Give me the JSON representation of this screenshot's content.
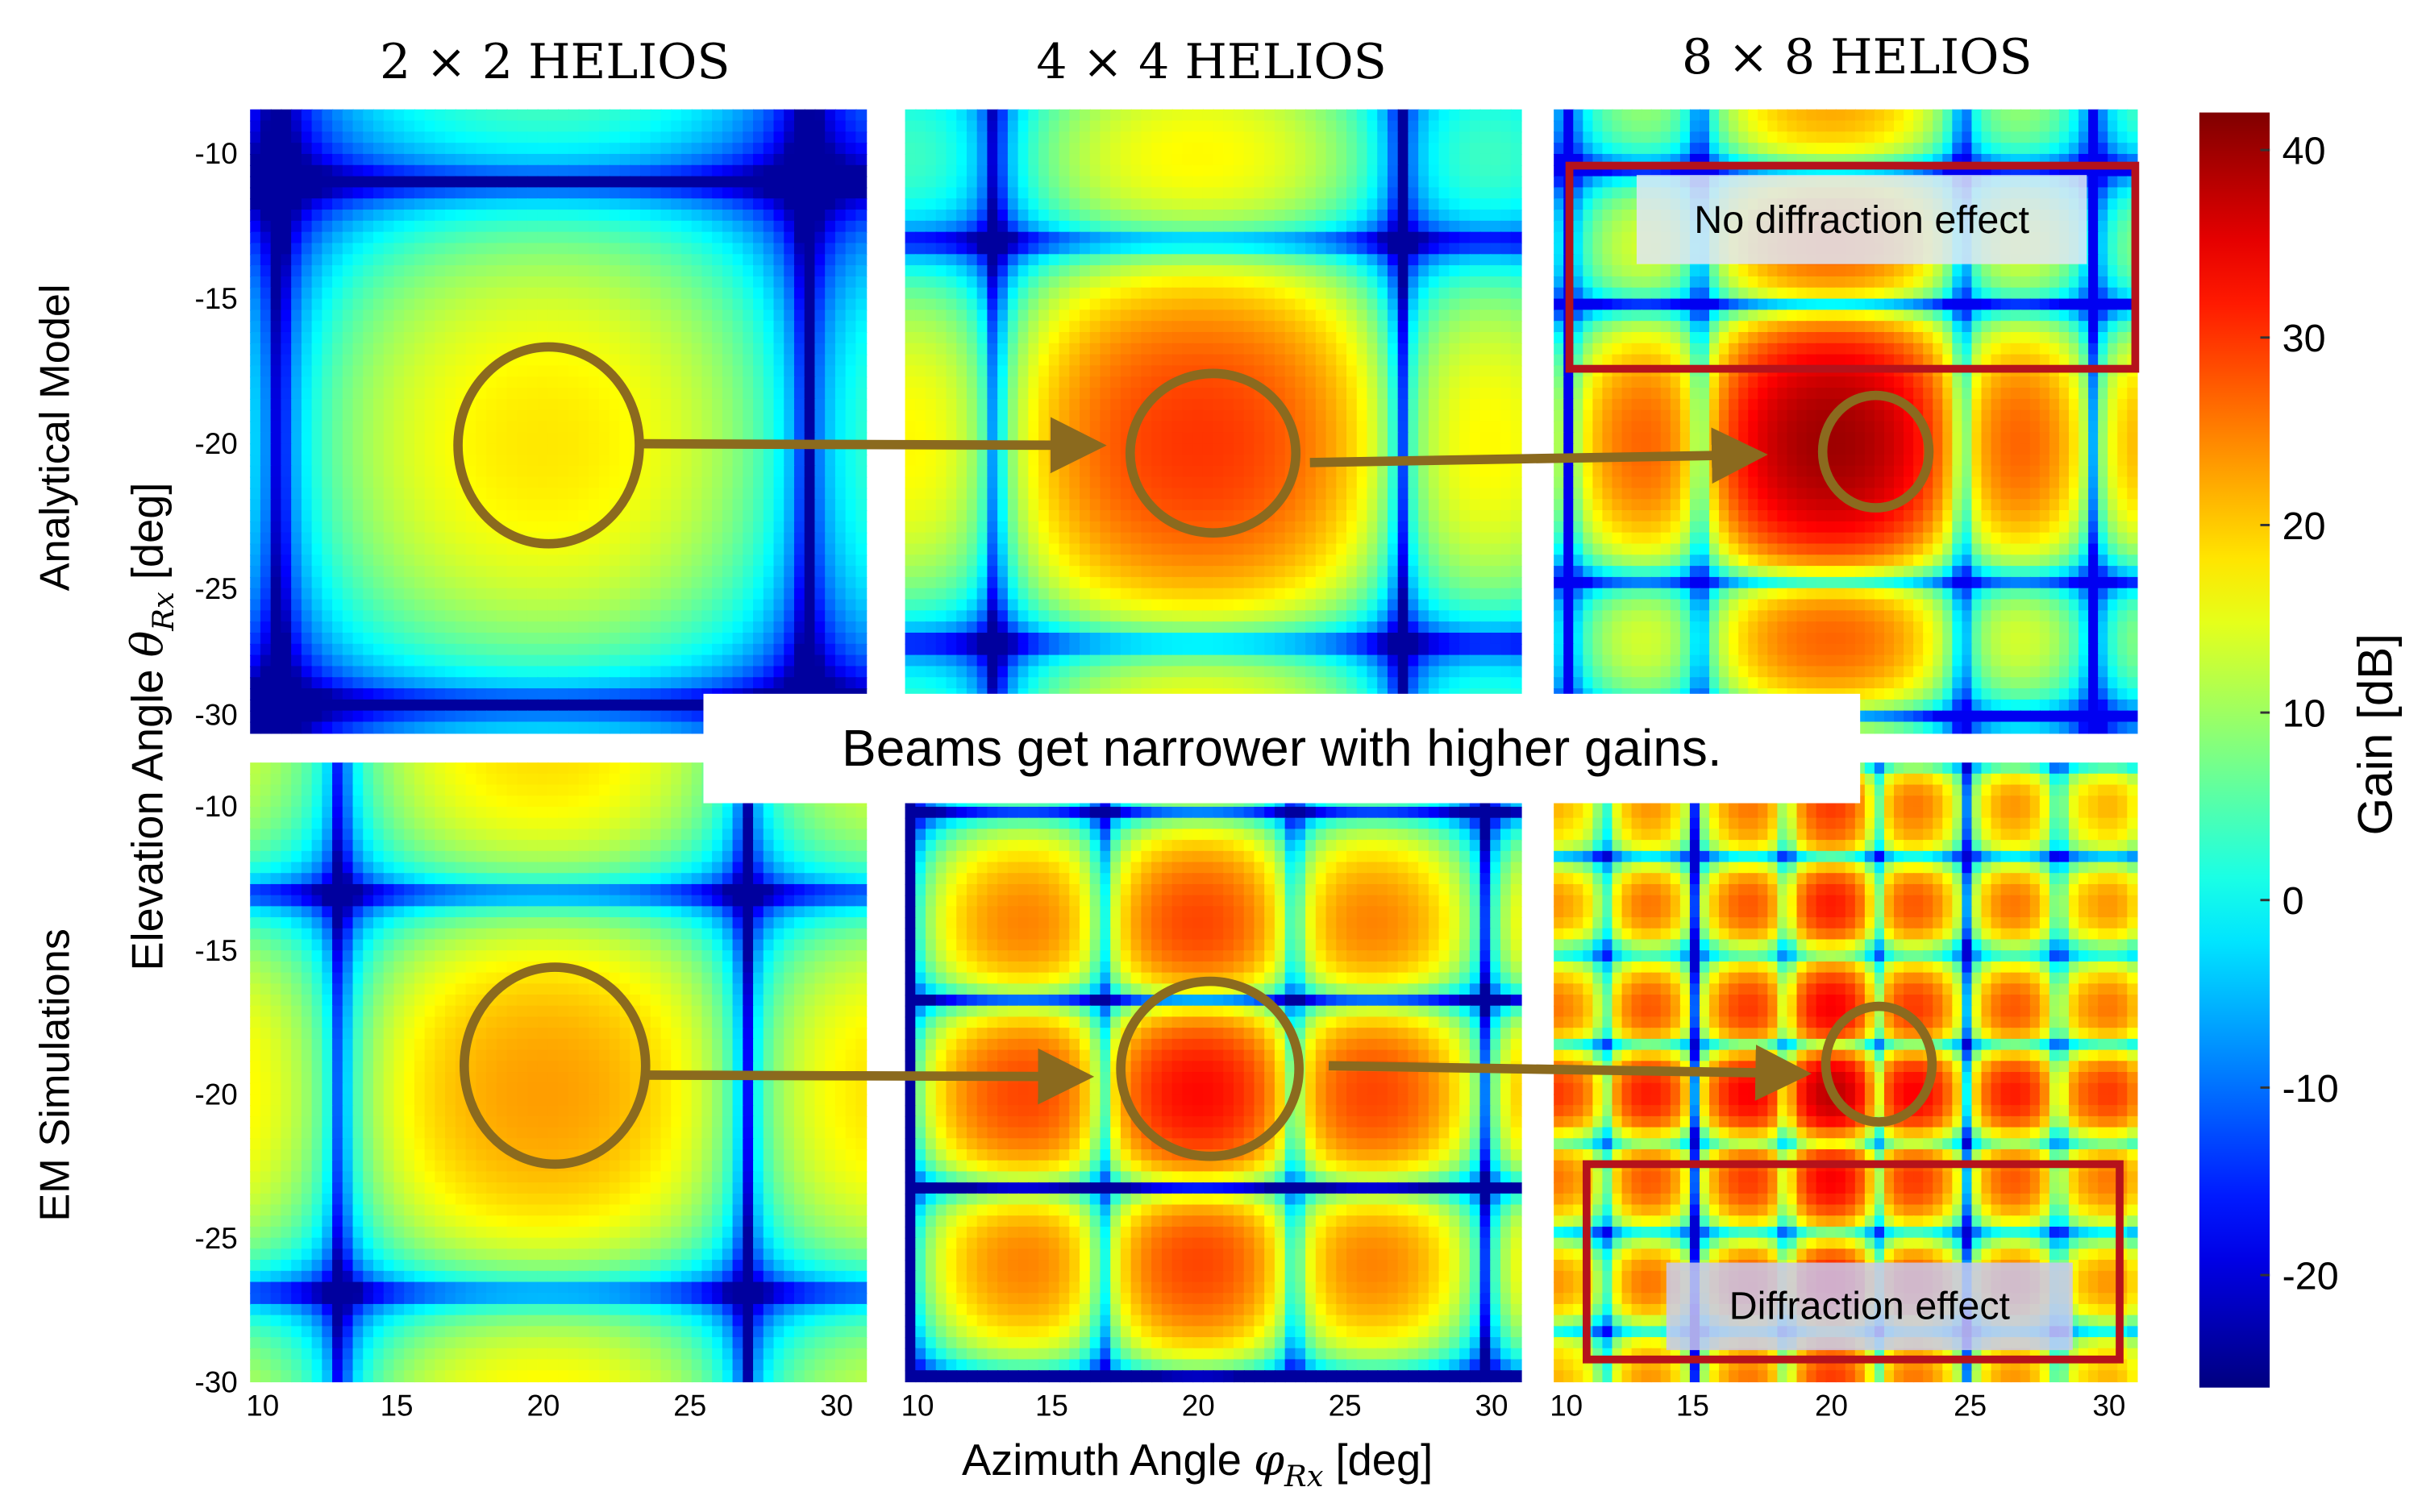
{
  "chart_data": {
    "type": "heatmap",
    "columns": [
      "2 × 2 HELIOS",
      "4 × 4 HELIOS",
      "8 × 8 HELIOS"
    ],
    "rows": [
      "Analytical Model",
      "EM Simulations"
    ],
    "xlabel_text": "Azimuth Angle ",
    "xlabel_symbol": "φ",
    "xlabel_sub": "Rx",
    "xlabel_unit": " [deg]",
    "ylabel_text": "Elevation Angle ",
    "ylabel_symbol": "θ",
    "ylabel_sub": "Rx",
    "ylabel_unit": " [deg]",
    "xlim": [
      10,
      31
    ],
    "x_ticks": [
      "10",
      "15",
      "20",
      "25",
      "30"
    ],
    "ylim": [
      -30,
      -8.5
    ],
    "y_ticks": [
      "-10",
      "-15",
      "-20",
      "-25",
      "-30"
    ],
    "colorbar": {
      "label": "Gain [dB]",
      "range": [
        -26,
        42
      ],
      "ticks": [
        "40",
        "30",
        "20",
        "10",
        "0",
        "-10",
        "-20"
      ],
      "colormap": "jet"
    },
    "peak_angle": {
      "azimuth": 20,
      "elevation": -20
    },
    "peak_gain_db": [
      [
        18,
        30,
        40
      ],
      [
        23,
        33,
        38
      ]
    ],
    "annotations": {
      "callout": "Beams get narrower with higher gains.",
      "no_diffraction": "No diffraction effect",
      "diffraction": "Diffraction effect"
    },
    "colors": {
      "circle": "#8B6A1E",
      "arrow": "#8B6A1E",
      "box": "#B5121B"
    }
  }
}
